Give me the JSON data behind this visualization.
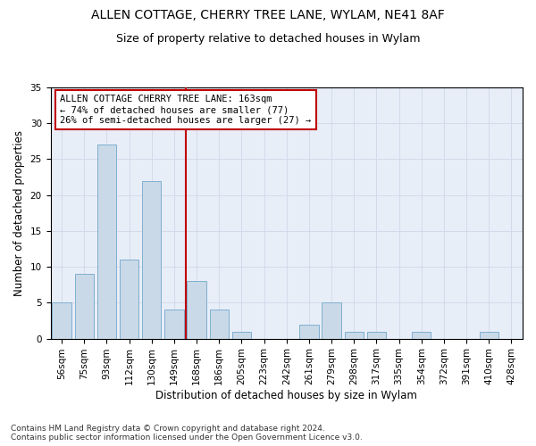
{
  "title1": "ALLEN COTTAGE, CHERRY TREE LANE, WYLAM, NE41 8AF",
  "title2": "Size of property relative to detached houses in Wylam",
  "xlabel": "Distribution of detached houses by size in Wylam",
  "ylabel": "Number of detached properties",
  "categories": [
    "56sqm",
    "75sqm",
    "93sqm",
    "112sqm",
    "130sqm",
    "149sqm",
    "168sqm",
    "186sqm",
    "205sqm",
    "223sqm",
    "242sqm",
    "261sqm",
    "279sqm",
    "298sqm",
    "317sqm",
    "335sqm",
    "354sqm",
    "372sqm",
    "391sqm",
    "410sqm",
    "428sqm"
  ],
  "values": [
    5,
    9,
    27,
    11,
    22,
    4,
    8,
    4,
    1,
    0,
    0,
    2,
    5,
    1,
    1,
    0,
    1,
    0,
    0,
    1,
    0
  ],
  "bar_color": "#c9d9e8",
  "bar_edge_color": "#7fafd0",
  "vline_x": 6,
  "vline_color": "#c00000",
  "annotation_text": "ALLEN COTTAGE CHERRY TREE LANE: 163sqm\n← 74% of detached houses are smaller (77)\n26% of semi-detached houses are larger (27) →",
  "annotation_box_color": "white",
  "annotation_box_edge": "#c00000",
  "ylim": [
    0,
    35
  ],
  "yticks": [
    0,
    5,
    10,
    15,
    20,
    25,
    30,
    35
  ],
  "grid_color": "#d0d8e8",
  "bg_color": "#e8eef8",
  "footer": "Contains HM Land Registry data © Crown copyright and database right 2024.\nContains public sector information licensed under the Open Government Licence v3.0.",
  "title1_fontsize": 10,
  "title2_fontsize": 9,
  "xlabel_fontsize": 8.5,
  "ylabel_fontsize": 8.5,
  "annotation_fontsize": 7.5,
  "footer_fontsize": 6.5,
  "tick_fontsize": 7.5
}
